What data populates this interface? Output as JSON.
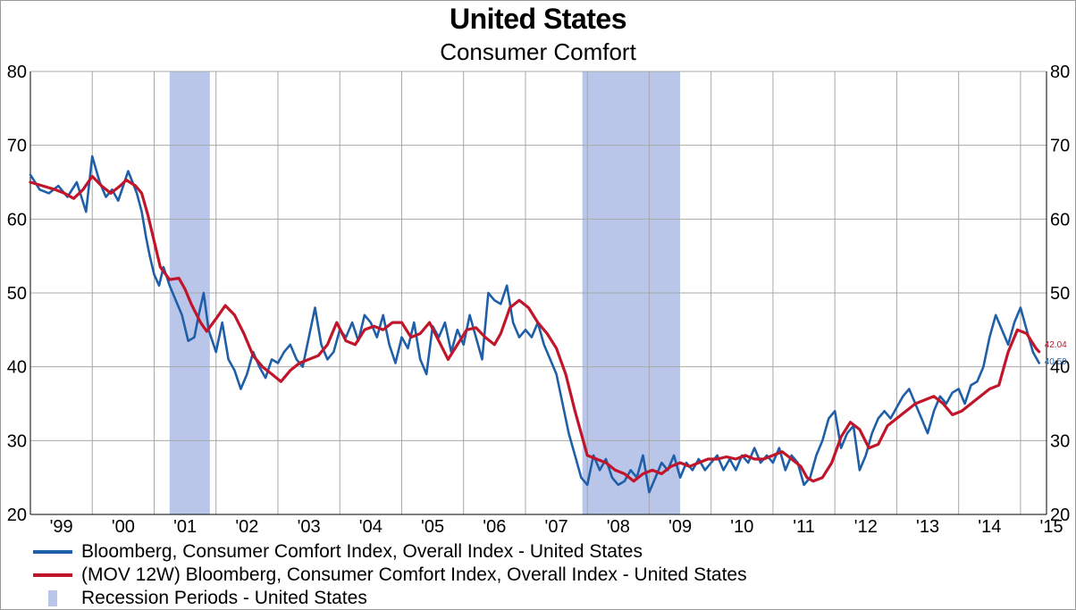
{
  "chart_data": {
    "type": "line",
    "title": "United States",
    "subtitle": "Consumer Comfort",
    "ylim": [
      20,
      80
    ],
    "yticks": [
      20,
      30,
      40,
      50,
      60,
      70,
      80
    ],
    "ytick_labels": [
      "20",
      "30",
      "40",
      "50",
      "60",
      "70",
      "80"
    ],
    "xlim": [
      1999.0,
      2015.42
    ],
    "xticks": [
      "'99",
      "'00",
      "'01",
      "'02",
      "'03",
      "'04",
      "'05",
      "'06",
      "'07",
      "'08",
      "'09",
      "'10",
      "'11",
      "'12",
      "'13",
      "'14",
      "'15"
    ],
    "grid": true,
    "legend_position": "bottom-left",
    "series": [
      {
        "name": "Bloomberg, Consumer Comfort Index, Overall Index - United States",
        "color": "#1f5fa8",
        "x": [
          1999.0,
          1999.15,
          1999.3,
          1999.45,
          1999.6,
          1999.75,
          1999.9,
          2000.0,
          2000.12,
          2000.22,
          2000.32,
          2000.42,
          2000.5,
          2000.58,
          2000.65,
          2000.72,
          2000.8,
          2000.87,
          2000.93,
          2001.0,
          2001.08,
          2001.15,
          2001.25,
          2001.35,
          2001.45,
          2001.55,
          2001.65,
          2001.72,
          2001.8,
          2001.88,
          2002.0,
          2002.1,
          2002.2,
          2002.3,
          2002.4,
          2002.5,
          2002.6,
          2002.7,
          2002.8,
          2002.9,
          2003.0,
          2003.1,
          2003.2,
          2003.3,
          2003.4,
          2003.5,
          2003.6,
          2003.7,
          2003.8,
          2003.9,
          2004.0,
          2004.1,
          2004.2,
          2004.3,
          2004.4,
          2004.5,
          2004.6,
          2004.7,
          2004.8,
          2004.9,
          2005.0,
          2005.1,
          2005.2,
          2005.3,
          2005.4,
          2005.5,
          2005.6,
          2005.7,
          2005.8,
          2005.9,
          2006.0,
          2006.1,
          2006.2,
          2006.3,
          2006.4,
          2006.5,
          2006.6,
          2006.7,
          2006.8,
          2006.9,
          2007.0,
          2007.1,
          2007.2,
          2007.3,
          2007.4,
          2007.5,
          2007.6,
          2007.7,
          2007.8,
          2007.9,
          2008.0,
          2008.1,
          2008.2,
          2008.3,
          2008.4,
          2008.5,
          2008.6,
          2008.7,
          2008.8,
          2008.9,
          2009.0,
          2009.1,
          2009.2,
          2009.3,
          2009.4,
          2009.5,
          2009.6,
          2009.7,
          2009.8,
          2009.9,
          2010.0,
          2010.1,
          2010.2,
          2010.3,
          2010.4,
          2010.5,
          2010.6,
          2010.7,
          2010.8,
          2010.9,
          2011.0,
          2011.1,
          2011.2,
          2011.3,
          2011.4,
          2011.5,
          2011.6,
          2011.7,
          2011.8,
          2011.9,
          2012.0,
          2012.1,
          2012.2,
          2012.3,
          2012.4,
          2012.5,
          2012.6,
          2012.7,
          2012.8,
          2012.9,
          2013.0,
          2013.1,
          2013.2,
          2013.3,
          2013.4,
          2013.5,
          2013.6,
          2013.7,
          2013.8,
          2013.9,
          2014.0,
          2014.1,
          2014.2,
          2014.3,
          2014.4,
          2014.5,
          2014.6,
          2014.7,
          2014.8,
          2014.9,
          2015.0,
          2015.1,
          2015.2,
          2015.3
        ],
        "y": [
          66,
          64,
          63.5,
          64.5,
          63,
          65,
          61,
          68.5,
          65,
          63,
          64,
          62.5,
          64.5,
          66.5,
          65,
          63.5,
          61,
          57.5,
          55,
          52.5,
          51,
          53.5,
          51,
          49,
          47,
          43.5,
          44,
          47,
          50,
          45,
          42,
          46,
          41,
          39.5,
          37,
          39,
          42,
          40,
          38.5,
          41,
          40.5,
          42,
          43,
          41,
          40,
          44,
          48,
          43,
          41,
          42,
          45,
          44,
          46,
          43.5,
          47,
          46,
          44,
          47,
          43,
          40.5,
          44,
          42.5,
          46,
          41,
          39,
          45.5,
          44,
          46,
          42,
          45,
          43,
          47,
          44,
          41,
          50,
          49,
          48.5,
          51,
          46,
          44,
          45,
          44,
          46,
          43,
          41,
          39,
          35,
          31,
          28,
          25,
          24,
          28,
          26,
          27.5,
          25,
          24,
          24.5,
          26,
          25,
          28,
          23,
          25,
          27,
          26,
          28,
          25,
          27,
          26,
          27.5,
          26,
          27,
          28,
          26,
          27.5,
          26,
          28,
          27,
          29,
          27,
          28,
          27,
          29,
          26,
          28,
          27,
          24,
          25,
          28,
          30,
          33,
          34,
          29,
          31,
          32,
          26,
          28,
          31,
          33,
          34,
          33,
          34.5,
          36,
          37,
          35,
          33,
          31,
          34,
          36,
          35,
          36.5,
          37,
          35,
          37.5,
          38,
          40,
          44,
          47,
          45,
          43,
          46,
          48,
          45,
          42,
          40.5
        ]
      },
      {
        "name": "(MOV 12W) Bloomberg, Consumer Comfort Index, Overall Index - United States",
        "color": "#c0152a",
        "x": [
          1999.0,
          1999.2,
          1999.4,
          1999.55,
          1999.7,
          1999.85,
          2000.0,
          2000.15,
          2000.3,
          2000.45,
          2000.55,
          2000.7,
          2000.8,
          2000.9,
          2001.0,
          2001.1,
          2001.25,
          2001.4,
          2001.5,
          2001.6,
          2001.75,
          2001.85,
          2002.0,
          2002.15,
          2002.3,
          2002.45,
          2002.6,
          2002.75,
          2002.9,
          2003.05,
          2003.2,
          2003.35,
          2003.5,
          2003.65,
          2003.8,
          2003.95,
          2004.1,
          2004.25,
          2004.4,
          2004.55,
          2004.7,
          2004.85,
          2005.0,
          2005.15,
          2005.3,
          2005.45,
          2005.6,
          2005.75,
          2005.9,
          2006.05,
          2006.2,
          2006.35,
          2006.5,
          2006.6,
          2006.75,
          2006.9,
          2007.05,
          2007.2,
          2007.35,
          2007.5,
          2007.65,
          2007.8,
          2007.9,
          2008.0,
          2008.15,
          2008.3,
          2008.45,
          2008.6,
          2008.75,
          2008.9,
          2009.05,
          2009.2,
          2009.35,
          2009.5,
          2009.65,
          2009.8,
          2009.95,
          2010.1,
          2010.25,
          2010.4,
          2010.55,
          2010.7,
          2010.85,
          2011.0,
          2011.15,
          2011.3,
          2011.45,
          2011.55,
          2011.65,
          2011.8,
          2011.95,
          2012.1,
          2012.25,
          2012.4,
          2012.55,
          2012.7,
          2012.85,
          2013.0,
          2013.15,
          2013.3,
          2013.45,
          2013.6,
          2013.75,
          2013.9,
          2014.05,
          2014.2,
          2014.35,
          2014.5,
          2014.65,
          2014.8,
          2014.95,
          2015.1,
          2015.25,
          2015.3
        ],
        "y": [
          65,
          64.5,
          64,
          63.5,
          62.8,
          64,
          65.8,
          64.5,
          63.5,
          64.5,
          65.3,
          64.5,
          63.5,
          60.5,
          57,
          53.5,
          51.8,
          52,
          50.5,
          48.5,
          46,
          44.8,
          46.5,
          48.3,
          47,
          44.5,
          41.5,
          40,
          39,
          38,
          39.5,
          40.5,
          41,
          41.5,
          43,
          46,
          43.5,
          43,
          45,
          45.5,
          45,
          46,
          46,
          44,
          44.5,
          46,
          43.5,
          41,
          43,
          45,
          45.3,
          44,
          43,
          44.5,
          48,
          49,
          48,
          46,
          44.5,
          42.5,
          39,
          34,
          31,
          28,
          27.5,
          27,
          26,
          25.5,
          24.5,
          25.5,
          26,
          25.5,
          26.5,
          27,
          26.5,
          27,
          27.5,
          27.5,
          27.8,
          27.5,
          28,
          27.5,
          27.5,
          28,
          28.5,
          27.5,
          26.5,
          25,
          24.5,
          25,
          27,
          30.5,
          32.5,
          31.5,
          29,
          29.5,
          32,
          33,
          34,
          35,
          35.5,
          36,
          35,
          33.5,
          34,
          35,
          36,
          37,
          37.5,
          42,
          45,
          44.5,
          42.5,
          42.04
        ]
      }
    ],
    "recessions": [
      [
        2001.25,
        2001.9
      ],
      [
        2007.92,
        2009.5
      ]
    ],
    "recession_label": "Recession Periods - United States",
    "recession_color": "#b9c6ea",
    "end_labels": [
      "42.04",
      "40.50"
    ]
  }
}
